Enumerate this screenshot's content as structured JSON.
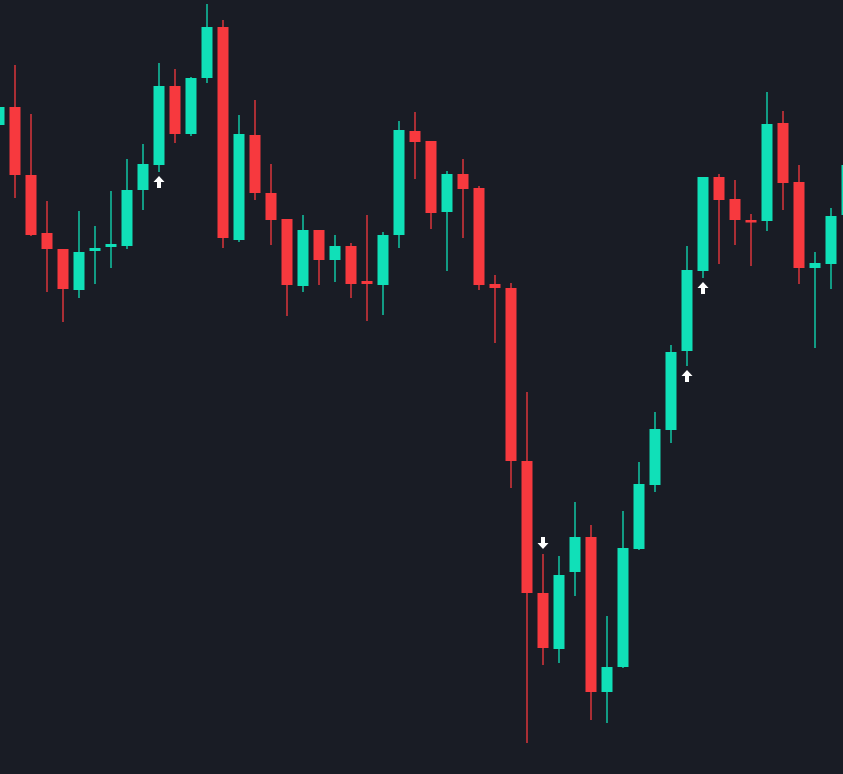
{
  "chart_data": {
    "type": "candlestick",
    "title": "",
    "xlabel": "",
    "ylabel": "",
    "ylim": [
      2.6,
      80
    ],
    "grid": false,
    "legend": "none",
    "colors": {
      "background": "#191c25",
      "up": "#10e0b8",
      "down": "#f7393e",
      "marker": "#ffffff"
    },
    "ohlc": [
      [
        67.5,
        69.5,
        67.3,
        69.3
      ],
      [
        69.3,
        73.5,
        60.2,
        62.5
      ],
      [
        62.5,
        68.6,
        56.4,
        56.5
      ],
      [
        56.7,
        59.9,
        50.8,
        55.1
      ],
      [
        55.1,
        55.1,
        47.8,
        51.1
      ],
      [
        51.0,
        58.9,
        50.2,
        54.8
      ],
      [
        54.9,
        57.4,
        51.6,
        55.2
      ],
      [
        55.3,
        60.9,
        53.2,
        55.6
      ],
      [
        55.4,
        64.1,
        55.1,
        61.0
      ],
      [
        61.0,
        65.6,
        59.0,
        63.6
      ],
      [
        63.5,
        73.7,
        62.8,
        71.4
      ],
      [
        71.4,
        73.1,
        65.7,
        66.6
      ],
      [
        66.6,
        72.3,
        66.4,
        72.2
      ],
      [
        72.2,
        79.6,
        71.7,
        77.3
      ],
      [
        77.3,
        78.0,
        55.2,
        56.2
      ],
      [
        56.0,
        68.5,
        55.8,
        66.6
      ],
      [
        66.5,
        70.0,
        60.0,
        60.7
      ],
      [
        60.7,
        63.6,
        55.5,
        58.0
      ],
      [
        58.1,
        58.1,
        48.4,
        51.5
      ],
      [
        51.4,
        58.5,
        50.8,
        57.0
      ],
      [
        57.0,
        57.0,
        51.5,
        54.0
      ],
      [
        54.0,
        56.5,
        51.8,
        55.4
      ],
      [
        55.4,
        55.7,
        50.2,
        51.6
      ],
      [
        51.9,
        58.5,
        47.9,
        51.6
      ],
      [
        51.5,
        56.8,
        48.5,
        56.5
      ],
      [
        56.5,
        67.9,
        55.2,
        67.0
      ],
      [
        66.9,
        68.8,
        62.1,
        65.8
      ],
      [
        65.9,
        65.9,
        57.1,
        58.7
      ],
      [
        58.8,
        62.9,
        52.9,
        62.6
      ],
      [
        62.6,
        64.1,
        56.2,
        61.1
      ],
      [
        61.2,
        61.4,
        51.0,
        51.5
      ],
      [
        51.6,
        52.5,
        45.7,
        51.2
      ],
      [
        51.2,
        51.7,
        31.2,
        33.9
      ],
      [
        33.9,
        40.8,
        5.7,
        20.7
      ],
      [
        20.7,
        24.6,
        13.5,
        15.2
      ],
      [
        15.1,
        24.4,
        13.7,
        22.5
      ],
      [
        22.8,
        29.8,
        20.4,
        26.3
      ],
      [
        26.3,
        27.5,
        8.0,
        10.8
      ],
      [
        10.8,
        18.4,
        7.7,
        13.3
      ],
      [
        13.3,
        28.9,
        13.2,
        25.2
      ],
      [
        25.1,
        33.8,
        25.0,
        31.6
      ],
      [
        31.5,
        38.8,
        30.8,
        37.1
      ],
      [
        37.0,
        45.5,
        35.7,
        44.8
      ],
      [
        44.9,
        55.4,
        43.4,
        53.0
      ],
      [
        52.9,
        62.3,
        52.2,
        62.3
      ],
      [
        62.3,
        62.6,
        53.6,
        60.0
      ],
      [
        60.1,
        62.0,
        55.5,
        58.0
      ],
      [
        58.0,
        58.6,
        53.4,
        57.8
      ],
      [
        57.9,
        70.8,
        56.9,
        67.6
      ],
      [
        67.7,
        68.9,
        59.0,
        61.7
      ],
      [
        61.8,
        63.5,
        51.6,
        53.2
      ],
      [
        53.2,
        54.8,
        45.2,
        53.7
      ],
      [
        53.6,
        59.2,
        51.1,
        58.4
      ],
      [
        58.5,
        63.7,
        58.3,
        63.5
      ]
    ],
    "signals": [
      {
        "index": 10,
        "direction": "up"
      },
      {
        "index": 34,
        "direction": "down"
      },
      {
        "index": 43,
        "direction": "up"
      },
      {
        "index": 44,
        "direction": "up"
      }
    ]
  }
}
